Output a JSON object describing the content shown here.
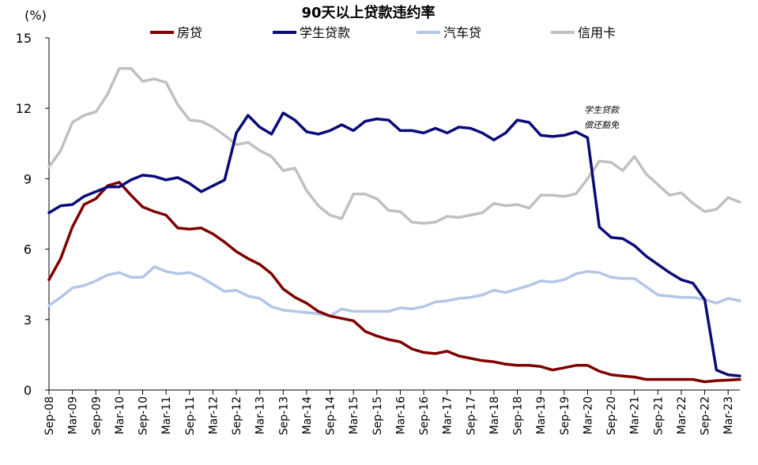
{
  "chart_data": {
    "type": "line",
    "title": "90天以上贷款违约率",
    "unit_label": "(%)",
    "ylim": [
      0,
      15
    ],
    "y_ticks": [
      0,
      3,
      6,
      9,
      12,
      15
    ],
    "x_tick_labels": [
      "Sep-08",
      "Mar-09",
      "Sep-09",
      "Mar-10",
      "Sep-10",
      "Mar-11",
      "Sep-11",
      "Mar-12",
      "Sep-12",
      "Mar-13",
      "Sep-13",
      "Mar-14",
      "Sep-14",
      "Mar-15",
      "Sep-15",
      "Mar-16",
      "Sep-16",
      "Mar-17",
      "Sep-17",
      "Mar-18",
      "Sep-18",
      "Mar-19",
      "Sep-19",
      "Mar-20",
      "Sep-20",
      "Mar-21",
      "Sep-21",
      "Mar-22",
      "Sep-22",
      "Mar-23"
    ],
    "x_start": "2008-09",
    "x_step": "quarter",
    "grid": false,
    "legend_position": "top",
    "annotation": [
      "学生贷款",
      "偿还豁免"
    ],
    "annotation_x_index": 45.7,
    "annotation_y": 11.8,
    "series": [
      {
        "name": "房贷",
        "color": "#7f0000",
        "values": [
          4.7,
          5.6,
          6.95,
          7.9,
          8.15,
          8.7,
          8.85,
          8.3,
          7.8,
          7.6,
          7.45,
          6.9,
          6.85,
          6.9,
          6.65,
          6.3,
          5.9,
          5.6,
          5.35,
          4.95,
          4.3,
          3.95,
          3.7,
          3.35,
          3.15,
          3.05,
          2.95,
          2.5,
          2.3,
          2.15,
          2.05,
          1.75,
          1.6,
          1.55,
          1.65,
          1.45,
          1.35,
          1.25,
          1.2,
          1.1,
          1.05,
          1.05,
          1.0,
          0.85,
          0.95,
          1.05,
          1.05,
          0.8,
          0.65,
          0.6,
          0.55,
          0.45,
          0.45,
          0.45,
          0.45,
          0.45,
          0.35,
          0.4,
          0.42,
          0.45
        ]
      },
      {
        "name": "学生贷款",
        "color": "#0a0a78",
        "values": [
          7.55,
          7.85,
          7.9,
          8.25,
          8.45,
          8.65,
          8.65,
          8.95,
          9.15,
          9.1,
          8.95,
          9.05,
          8.8,
          8.45,
          8.7,
          8.95,
          10.95,
          11.7,
          11.2,
          10.9,
          11.8,
          11.5,
          11.0,
          10.9,
          11.05,
          11.3,
          11.05,
          11.45,
          11.55,
          11.5,
          11.05,
          11.05,
          10.95,
          11.15,
          10.95,
          11.2,
          11.15,
          10.95,
          10.65,
          10.95,
          11.5,
          11.4,
          10.85,
          10.8,
          10.85,
          11.0,
          10.75,
          6.95,
          6.5,
          6.45,
          6.15,
          5.7,
          5.35,
          5.0,
          4.7,
          4.55,
          3.85,
          0.85,
          0.65,
          0.6
        ]
      },
      {
        "name": "汽车贷",
        "color": "#b4c6e7",
        "values": [
          3.6,
          3.95,
          4.35,
          4.45,
          4.65,
          4.9,
          5.0,
          4.8,
          4.8,
          5.25,
          5.05,
          4.95,
          5.0,
          4.8,
          4.5,
          4.2,
          4.25,
          4.0,
          3.9,
          3.55,
          3.4,
          3.35,
          3.3,
          3.25,
          3.15,
          3.45,
          3.35,
          3.35,
          3.35,
          3.35,
          3.5,
          3.45,
          3.55,
          3.75,
          3.8,
          3.9,
          3.95,
          4.05,
          4.25,
          4.15,
          4.3,
          4.45,
          4.65,
          4.6,
          4.7,
          4.95,
          5.05,
          5.0,
          4.8,
          4.75,
          4.75,
          4.4,
          4.05,
          4.0,
          3.95,
          3.95,
          3.85,
          3.7,
          3.9,
          3.8
        ]
      },
      {
        "name": "信用卡",
        "color": "#c0c0c0",
        "values": [
          9.5,
          10.2,
          11.4,
          11.7,
          11.85,
          12.6,
          13.7,
          13.7,
          13.15,
          13.25,
          13.1,
          12.15,
          11.5,
          11.45,
          11.2,
          10.85,
          10.45,
          10.55,
          10.2,
          9.95,
          9.35,
          9.45,
          8.5,
          7.85,
          7.45,
          7.3,
          8.35,
          8.35,
          8.15,
          7.65,
          7.6,
          7.15,
          7.1,
          7.15,
          7.4,
          7.35,
          7.45,
          7.55,
          7.95,
          7.85,
          7.9,
          7.75,
          8.3,
          8.3,
          8.25,
          8.35,
          9.0,
          9.75,
          9.7,
          9.35,
          9.95,
          9.2,
          8.75,
          8.3,
          8.4,
          7.95,
          7.6,
          7.7,
          8.2,
          8.0
        ]
      }
    ]
  }
}
